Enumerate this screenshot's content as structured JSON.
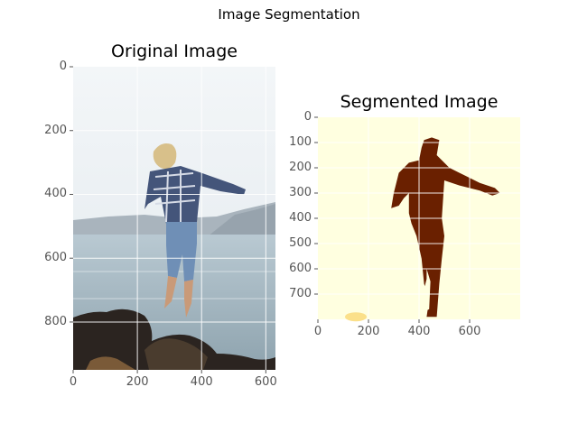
{
  "figure": {
    "suptitle": "Image Segmentation"
  },
  "chart_data": [
    {
      "type": "image",
      "title": "Original Image",
      "xlim": [
        0,
        630
      ],
      "ylim": [
        950,
        0
      ],
      "xticks": [
        0,
        200,
        400,
        600
      ],
      "yticks": [
        0,
        200,
        400,
        600,
        800
      ],
      "grid": true,
      "content": "photo of a man jumping in a plaid shirt and jeans above rocks by the sea"
    },
    {
      "type": "heatmap",
      "title": "Segmented Image",
      "xlim": [
        0,
        800
      ],
      "ylim": [
        800,
        0
      ],
      "xticks": [
        0,
        200,
        400,
        600
      ],
      "yticks": [
        0,
        100,
        200,
        300,
        400,
        500,
        600,
        700
      ],
      "grid": true,
      "colors": {
        "background": "#ffffe0",
        "foreground": "#6a2000",
        "minor": "#fbe08a"
      }
    }
  ]
}
